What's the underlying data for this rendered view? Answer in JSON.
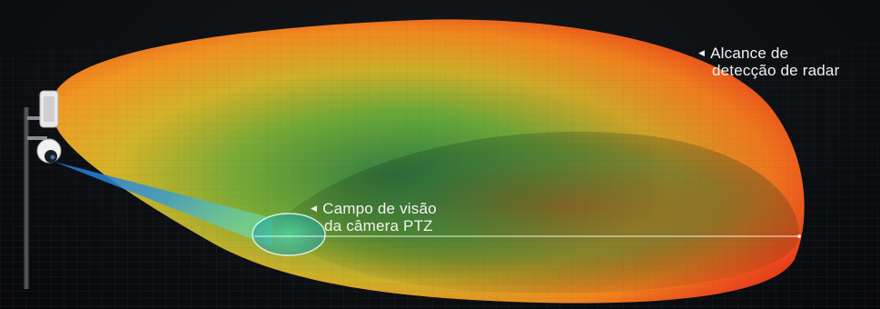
{
  "labels": {
    "radar_range": {
      "line1": "Alcance de",
      "line2": "detecção de radar"
    },
    "ptz_fov": {
      "line1": "Campo de visão",
      "line2": "da câmera PTZ"
    }
  },
  "colors": {
    "background": "#0b0d10",
    "radar_outer": "#e8401c",
    "radar_mid": "#f0a020",
    "radar_inner": "#7fc430",
    "radar_core": "#1d7a45",
    "ptz_beam": "#2e8fe0",
    "ptz_highlight": "#8ff0c8",
    "range_line": "#ffffff"
  },
  "icons": {
    "arrow": "left-pointing-triangle"
  }
}
